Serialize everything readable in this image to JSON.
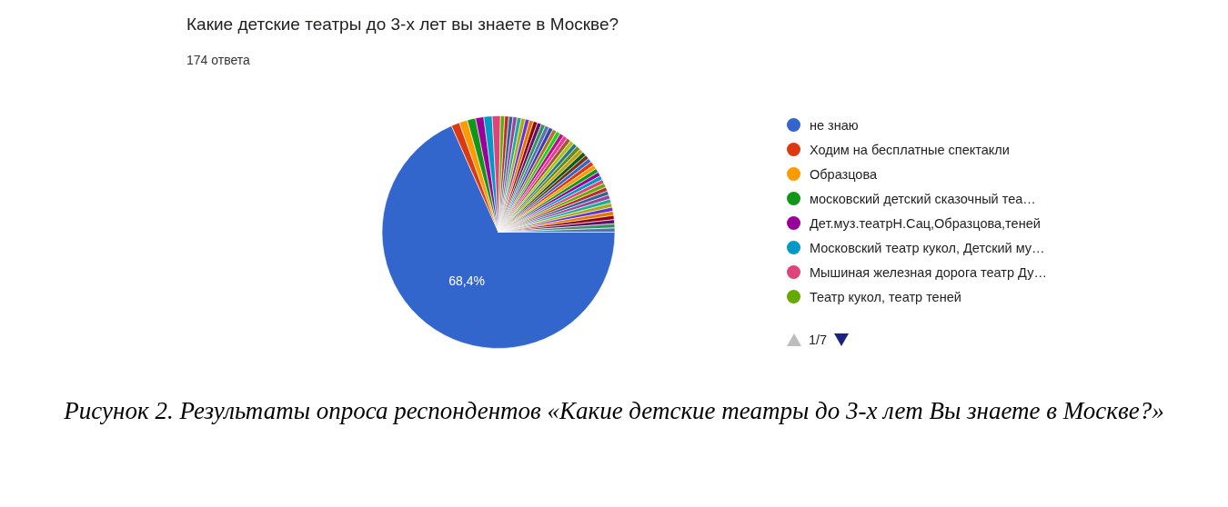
{
  "chart_data": {
    "type": "pie",
    "title": "Какие детские театры до 3-х лет вы знаете в Москве?",
    "subtitle": "174 ответа",
    "categories": [
      "не знаю",
      "Ходим на бесплатные спектакли",
      "Образцова",
      "московский детский сказочный теа…",
      "Дет.муз.театрН.Сац,Образцова,теней",
      "Московский театр кукол, Детский му…",
      "Мышиная железная дорога театр Ду…",
      "Театр кукол, театр теней",
      null,
      null,
      null,
      null,
      null,
      null,
      null,
      null,
      null,
      null,
      null,
      null,
      null,
      null,
      null,
      null,
      null,
      null,
      null,
      null,
      null,
      null,
      null,
      null,
      null,
      null,
      null,
      null,
      null,
      null,
      null,
      null,
      null,
      null,
      null,
      null,
      null,
      null,
      null,
      null,
      null,
      null
    ],
    "values": [
      68.4,
      1.15,
      1.15,
      1.15,
      1.15,
      1.15,
      1.15,
      0.575,
      0.575,
      0.575,
      0.575,
      0.575,
      0.575,
      0.575,
      0.575,
      0.575,
      0.575,
      0.575,
      0.575,
      0.575,
      0.575,
      0.575,
      0.575,
      0.575,
      0.575,
      0.575,
      0.575,
      0.575,
      0.575,
      0.575,
      0.575,
      0.575,
      0.575,
      0.575,
      0.575,
      0.575,
      0.575,
      0.575,
      0.575,
      0.575,
      0.575,
      0.575,
      0.575,
      0.575,
      0.575,
      0.575,
      0.575,
      0.575,
      0.575,
      0.575
    ],
    "colors": [
      "#3366cc",
      "#dc3912",
      "#ff9900",
      "#109618",
      "#990099",
      "#0099c6",
      "#dd4477",
      "#66aa00",
      "#b82e2e",
      "#316395",
      "#994499",
      "#22aa99",
      "#aaaa11",
      "#6633cc",
      "#e67300",
      "#8b0707",
      "#651067",
      "#329262",
      "#5574a6",
      "#3b3eac",
      "#b77322",
      "#16d620",
      "#b91383",
      "#f4359e",
      "#9c5935",
      "#a9c413",
      "#2a778d",
      "#668d1c",
      "#bea413",
      "#0c5922",
      "#743411",
      "#3366cc",
      "#dc3912",
      "#ff9900",
      "#109618",
      "#990099",
      "#0099c6",
      "#dd4477",
      "#66aa00",
      "#b82e2e",
      "#316395",
      "#994499",
      "#22aa99",
      "#aaaa11",
      "#6633cc",
      "#e67300",
      "#8b0707",
      "#651067",
      "#329262",
      "#5574a6"
    ],
    "value_labels": [
      "68,4%",
      null,
      null,
      null,
      null,
      null,
      null,
      null,
      null,
      null,
      null,
      null,
      null,
      null,
      null,
      null,
      null,
      null,
      null,
      null,
      null,
      null,
      null,
      null,
      null,
      null,
      null,
      null,
      null,
      null,
      null,
      null,
      null,
      null,
      null,
      null,
      null,
      null,
      null,
      null,
      null,
      null,
      null,
      null,
      null,
      null,
      null,
      null,
      null,
      null
    ],
    "legend": "right",
    "annotations": [
      "Рисунок 2. Результаты опроса респондентов «Какие детские театры до 3-х лет Вы знаете в Москве?»",
      "1/7"
    ]
  }
}
